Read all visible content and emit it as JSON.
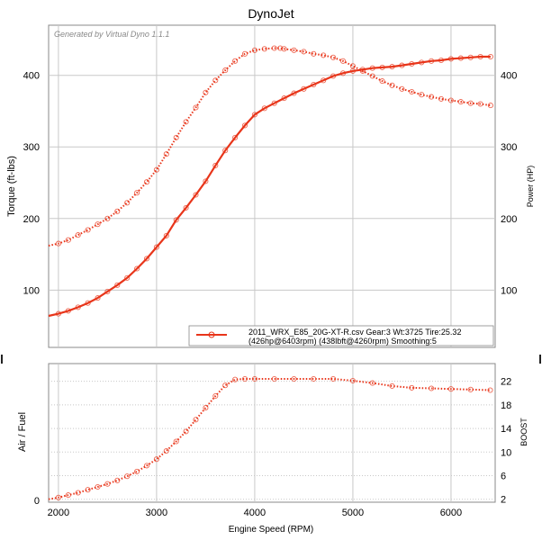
{
  "chart_data": {
    "title": "DynoJet",
    "watermark": "Generated by Virtual Dyno 1.1.1",
    "xlabel": "Engine Speed (RPM)",
    "xlim": [
      1900,
      6450
    ],
    "x_ticks": [
      2000,
      3000,
      4000,
      5000,
      6000
    ],
    "top": {
      "type": "line",
      "ylabel_left": "Torque (ft-lbs)",
      "ylabel_right": "Power (HP)",
      "ylim": [
        20,
        470
      ],
      "y_ticks": [
        100,
        200,
        300,
        400
      ],
      "series": [
        {
          "name": "2011_WRX_E85_20G-XT-R.csv Gear:3 Wt:3725 Tire:25.32",
          "role": "power",
          "style": "solid",
          "x": [
            1900,
            2000,
            2100,
            2200,
            2300,
            2400,
            2500,
            2600,
            2700,
            2800,
            2900,
            3000,
            3100,
            3200,
            3300,
            3400,
            3500,
            3600,
            3700,
            3800,
            3900,
            4000,
            4100,
            4200,
            4300,
            4400,
            4500,
            4600,
            4700,
            4800,
            4900,
            5000,
            5100,
            5200,
            5300,
            5400,
            5500,
            5600,
            5700,
            5800,
            5900,
            6000,
            6100,
            6200,
            6300,
            6403
          ],
          "values": [
            64,
            67,
            71,
            76,
            82,
            89,
            98,
            107,
            117,
            130,
            144,
            160,
            176,
            198,
            215,
            233,
            252,
            274,
            295,
            313,
            330,
            345,
            354,
            361,
            368,
            375,
            381,
            387,
            393,
            399,
            403,
            406,
            408,
            410,
            411,
            412,
            414,
            416,
            418,
            420,
            421,
            423,
            424,
            425,
            426,
            426
          ]
        },
        {
          "name": "",
          "role": "torque",
          "style": "dotted",
          "x": [
            1900,
            2000,
            2100,
            2200,
            2300,
            2400,
            2500,
            2600,
            2700,
            2800,
            2900,
            3000,
            3100,
            3200,
            3300,
            3400,
            3500,
            3600,
            3700,
            3800,
            3900,
            4000,
            4100,
            4200,
            4260,
            4300,
            4400,
            4500,
            4600,
            4700,
            4800,
            4900,
            5000,
            5100,
            5200,
            5300,
            5400,
            5500,
            5600,
            5700,
            5800,
            5900,
            6000,
            6100,
            6200,
            6300,
            6403
          ],
          "values": [
            162,
            165,
            170,
            177,
            184,
            192,
            200,
            210,
            222,
            236,
            251,
            268,
            290,
            313,
            335,
            355,
            376,
            393,
            407,
            420,
            430,
            435,
            437,
            438,
            438,
            437,
            435,
            433,
            430,
            428,
            425,
            420,
            413,
            406,
            399,
            392,
            386,
            381,
            377,
            373,
            370,
            367,
            365,
            363,
            361,
            360,
            358
          ]
        }
      ],
      "legend": {
        "placement": "bottom-right",
        "line1": "2011_WRX_E85_20G-XT-R.csv Gear:3 Wt:3725 Tire:25.32",
        "line2": "(426hp@6403rpm) (438lbft@4260rpm) Smoothing:5"
      },
      "color": "#e8351a"
    },
    "bottom": {
      "type": "line",
      "ylabel_left": "Air / Fuel",
      "ylabel_right": "BOOST",
      "left_ticks": [
        "0"
      ],
      "ylim": [
        1.5,
        25
      ],
      "y_ticks": [
        2,
        6,
        10,
        14,
        18,
        22
      ],
      "series": [
        {
          "name": "BOOST",
          "style": "dotted",
          "x": [
            1900,
            2000,
            2100,
            2200,
            2300,
            2400,
            2500,
            2600,
            2700,
            2800,
            2900,
            3000,
            3100,
            3200,
            3300,
            3400,
            3500,
            3600,
            3700,
            3800,
            3900,
            4000,
            4200,
            4400,
            4600,
            4800,
            5000,
            5200,
            5400,
            5600,
            5800,
            6000,
            6200,
            6400
          ],
          "values": [
            2.0,
            2.3,
            2.7,
            3.1,
            3.6,
            4.1,
            4.6,
            5.2,
            5.9,
            6.7,
            7.7,
            8.8,
            10.2,
            11.8,
            13.5,
            15.5,
            17.5,
            19.5,
            21.3,
            22.3,
            22.4,
            22.4,
            22.4,
            22.4,
            22.4,
            22.4,
            22.1,
            21.7,
            21.2,
            20.9,
            20.8,
            20.7,
            20.6,
            20.5
          ]
        }
      ]
    }
  }
}
